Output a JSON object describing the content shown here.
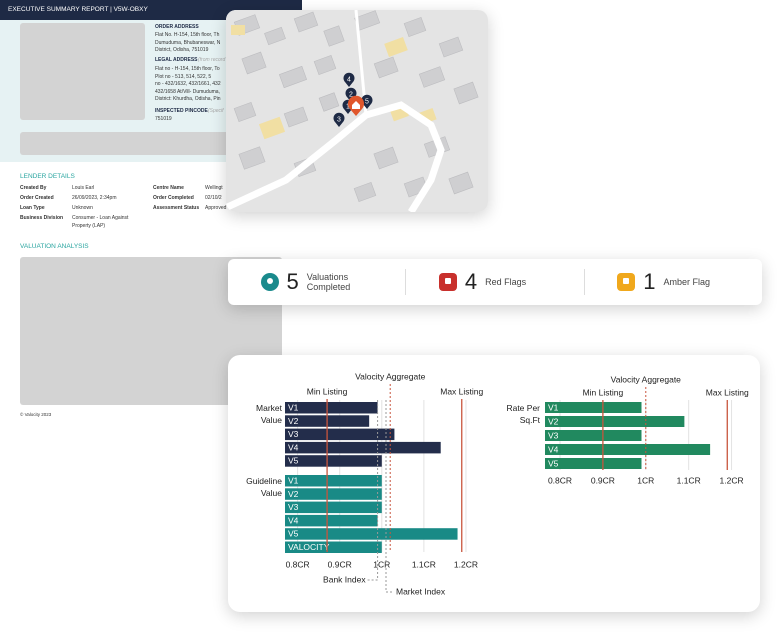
{
  "report": {
    "title": "EXECUTIVE SUMMARY REPORT | V5W-OBXY",
    "order_address_label": "ORDER ADDRESS",
    "order_address": [
      "Flat No. H-154, 15th floor, Th",
      "Dumuduma, Bhubaneswar, N",
      "District, Odisha, 751019"
    ],
    "legal_address_label": "LEGAL ADDRESS",
    "legal_address_note": "(from record",
    "legal_address": [
      "Flat no - H-154, 15th floor, To",
      "Plot no - 513, 514, 522, 5",
      "no - 432/1632, 432/1661, 432",
      "432/1658 At/Vill- Dumuduma,",
      "District: Khurdha, Odisha, Pin"
    ],
    "inspected_pincode_label": "INSPECTED PINCODE",
    "inspected_pincode_note": "(Specif",
    "inspected_pincode": "751019",
    "lender_details_title": "LENDER DETAILS",
    "lender_details": [
      [
        "Created By",
        "Louis Earl"
      ],
      [
        "Order Created",
        "26/09/2023, 2:34pm"
      ],
      [
        "Loan Type",
        "Unknown"
      ],
      [
        "Business Division",
        "Consumer - Loan Against Property (LAP)"
      ],
      [
        "Centre Name",
        "Wellingt"
      ],
      [
        "Order Completed",
        "02/10/2"
      ],
      [
        "Assessment Status",
        "Approved"
      ]
    ],
    "valuation_analysis_title": "VALUATION ANALYSIS",
    "footer": "© Valocity 2023"
  },
  "map": {
    "markers": [
      "4",
      "2",
      "1",
      "5",
      "3"
    ]
  },
  "stats": [
    {
      "value": 5,
      "label": "Valuations Completed",
      "color": "#1a8a8c"
    },
    {
      "value": 4,
      "label": "Red Flags",
      "color": "#c8302c"
    },
    {
      "value": 1,
      "label": "Amber Flag",
      "color": "#f0a81c"
    }
  ],
  "chart_data": [
    {
      "type": "bar",
      "orientation": "horizontal",
      "series": [
        {
          "name": "Market Value",
          "color": "#232d4b",
          "categories": [
            "V1",
            "V2",
            "V3",
            "V4",
            "V5"
          ],
          "values": [
            0.99,
            0.97,
            1.03,
            1.14,
            1.0
          ]
        },
        {
          "name": "Guideline Value",
          "color": "#198a86",
          "categories": [
            "V1",
            "V2",
            "V3",
            "V4",
            "V5",
            "VALOCITY"
          ],
          "values": [
            1.0,
            1.0,
            1.0,
            0.99,
            1.18,
            1.0
          ]
        }
      ],
      "reference_lines": [
        {
          "name": "Min Listing",
          "value": 0.87,
          "color": "#c8553d",
          "style": "solid"
        },
        {
          "name": "Valocity Aggregate",
          "value": 1.02,
          "color": "#c8553d",
          "style": "dotted"
        },
        {
          "name": "Max Listing",
          "value": 1.19,
          "color": "#c8553d",
          "style": "solid"
        }
      ],
      "index_lines": [
        {
          "name": "Bank Index",
          "value": 0.99,
          "color": "#999999"
        },
        {
          "name": "Market Index",
          "value": 1.01,
          "color": "#999999"
        }
      ],
      "xlim": [
        0.77,
        1.25
      ],
      "xticks": [
        {
          "value": 0.8,
          "label": "0.8CR"
        },
        {
          "value": 0.9,
          "label": "0.9CR"
        },
        {
          "value": 1,
          "label": "1CR"
        },
        {
          "value": 1.1,
          "label": "1.1CR"
        },
        {
          "value": 1.2,
          "label": "1.2CR"
        }
      ],
      "grid": true
    },
    {
      "type": "bar",
      "orientation": "horizontal",
      "series": [
        {
          "name": "Rate Per Sq.Ft",
          "color": "#21895f",
          "categories": [
            "V1",
            "V2",
            "V3",
            "V4",
            "V5"
          ],
          "values": [
            0.99,
            1.09,
            0.99,
            1.15,
            0.99
          ]
        }
      ],
      "reference_lines": [
        {
          "name": "Min Listing",
          "value": 0.9,
          "color": "#c8553d",
          "style": "solid"
        },
        {
          "name": "Valocity Aggregate",
          "value": 1.0,
          "color": "#c8553d",
          "style": "dotted"
        },
        {
          "name": "Max Listing",
          "value": 1.19,
          "color": "#c8553d",
          "style": "solid"
        }
      ],
      "index_lines": [],
      "xlim": [
        0.765,
        1.25
      ],
      "xticks": [
        {
          "value": 0.8,
          "label": "0.8CR"
        },
        {
          "value": 0.9,
          "label": "0.9CR"
        },
        {
          "value": 1,
          "label": "1CR"
        },
        {
          "value": 1.1,
          "label": "1.1CR"
        },
        {
          "value": 1.2,
          "label": "1.2CR"
        }
      ],
      "grid": true
    }
  ]
}
